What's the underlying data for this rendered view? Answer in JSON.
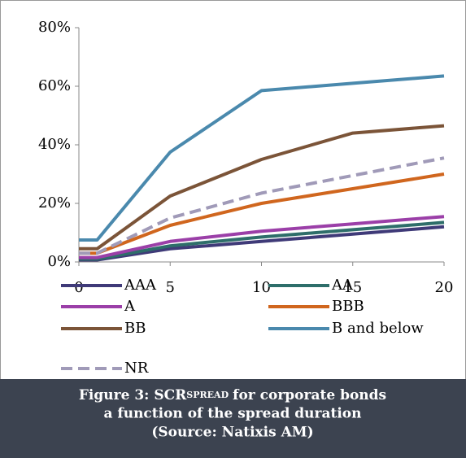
{
  "chart_data": {
    "type": "line",
    "x": [
      0,
      1,
      5,
      10,
      15,
      20
    ],
    "xlim": [
      0,
      20
    ],
    "xticks": [
      0,
      5,
      10,
      15,
      20
    ],
    "ylim": [
      0,
      80
    ],
    "yticks": [
      {
        "value": 0,
        "label": "0%"
      },
      {
        "value": 20,
        "label": "20%"
      },
      {
        "value": 40,
        "label": "40%"
      },
      {
        "value": 60,
        "label": "60%"
      },
      {
        "value": 80,
        "label": "80%"
      }
    ],
    "grid": false,
    "series": [
      {
        "name": "AAA",
        "color": "#3f3a78",
        "dashed": false,
        "values": [
          0.7,
          0.7,
          4.5,
          7,
          9.5,
          12
        ]
      },
      {
        "name": "AA",
        "color": "#2e6e6a",
        "dashed": false,
        "values": [
          1,
          1,
          5.5,
          8.5,
          11,
          13.5
        ]
      },
      {
        "name": "A",
        "color": "#9b3fa8",
        "dashed": false,
        "values": [
          1.5,
          1.5,
          7,
          10.5,
          13,
          15.5
        ]
      },
      {
        "name": "BBB",
        "color": "#d0661e",
        "dashed": false,
        "values": [
          3,
          3,
          12.5,
          20,
          25,
          30
        ]
      },
      {
        "name": "BB",
        "color": "#7b5438",
        "dashed": false,
        "values": [
          4.5,
          4.5,
          22.5,
          35,
          44,
          46.5
        ]
      },
      {
        "name": "B and below",
        "color": "#4a89ad",
        "dashed": false,
        "values": [
          7.5,
          7.5,
          37.5,
          58.5,
          61,
          63.5
        ]
      },
      {
        "name": "NR",
        "color": "#a09ab8",
        "dashed": true,
        "values": [
          3,
          3,
          15,
          23.5,
          29.5,
          35.5
        ]
      }
    ],
    "caption": {
      "prefix": "Figure 3: SCR",
      "small": "SPREAD",
      "suffix": "for corporate bonds",
      "lines": [
        "a function of the spread duration",
        "(Source: Natixis AM)"
      ]
    }
  }
}
